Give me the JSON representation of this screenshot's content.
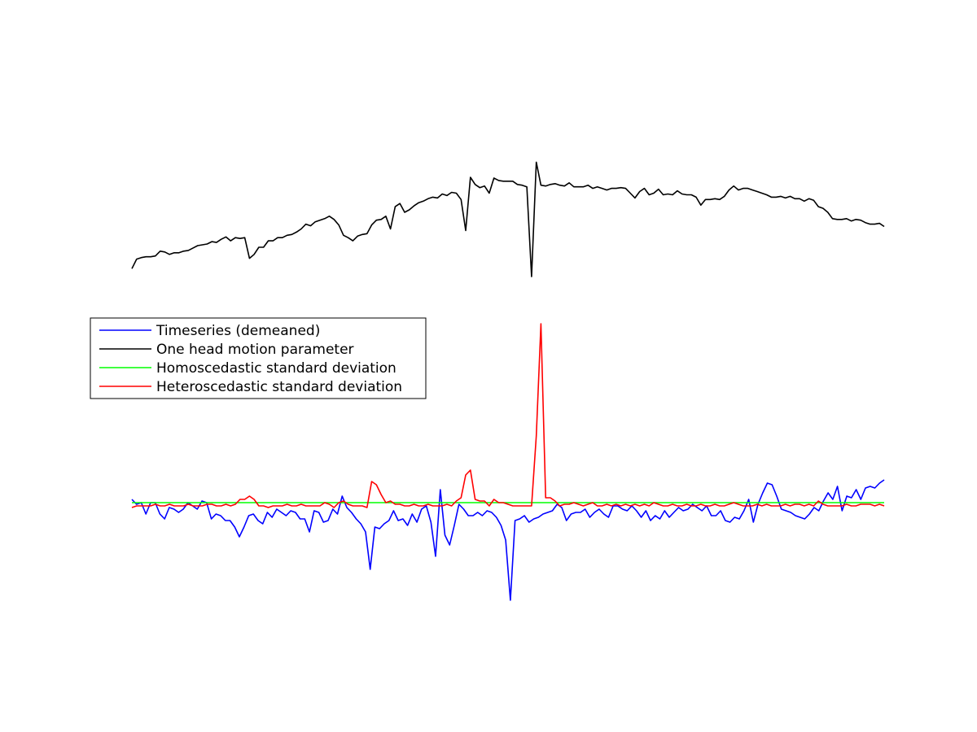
{
  "chart_data": [
    {
      "type": "line",
      "title": "",
      "xlabel": "",
      "ylabel": "",
      "axes_visible": false,
      "grid": false,
      "xlim": [
        1,
        160
      ],
      "ylim": [
        -1.1,
        1.1
      ],
      "series": [
        {
          "name": "One head motion parameter",
          "color": "#000000",
          "values": [
            -0.95,
            -0.83,
            -0.81,
            -0.8,
            -0.8,
            -0.79,
            -0.73,
            -0.74,
            -0.77,
            -0.75,
            -0.75,
            -0.73,
            -0.72,
            -0.69,
            -0.66,
            -0.65,
            -0.64,
            -0.61,
            -0.62,
            -0.58,
            -0.55,
            -0.6,
            -0.56,
            -0.57,
            -0.56,
            -0.82,
            -0.77,
            -0.68,
            -0.68,
            -0.6,
            -0.6,
            -0.56,
            -0.56,
            -0.53,
            -0.52,
            -0.49,
            -0.45,
            -0.39,
            -0.41,
            -0.36,
            -0.34,
            -0.32,
            -0.29,
            -0.33,
            -0.4,
            -0.53,
            -0.56,
            -0.6,
            -0.54,
            -0.52,
            -0.51,
            -0.4,
            -0.34,
            -0.33,
            -0.29,
            -0.45,
            -0.17,
            -0.13,
            -0.24,
            -0.21,
            -0.16,
            -0.12,
            -0.1,
            -0.07,
            -0.05,
            -0.06,
            -0.01,
            -0.03,
            0.01,
            0.0,
            -0.08,
            -0.47,
            0.2,
            0.11,
            0.07,
            0.09,
            0.0,
            0.19,
            0.16,
            0.15,
            0.15,
            0.15,
            0.11,
            0.1,
            0.08,
            -1.05,
            0.39,
            0.1,
            0.09,
            0.11,
            0.12,
            0.1,
            0.09,
            0.13,
            0.08,
            0.08,
            0.08,
            0.1,
            0.06,
            0.08,
            0.06,
            0.04,
            0.06,
            0.06,
            0.07,
            0.06,
            0.0,
            -0.06,
            0.02,
            0.06,
            -0.02,
            0.0,
            0.05,
            -0.02,
            -0.01,
            -0.02,
            0.03,
            -0.01,
            -0.02,
            -0.02,
            -0.05,
            -0.15,
            -0.08,
            -0.08,
            -0.07,
            -0.08,
            -0.04,
            0.04,
            0.09,
            0.04,
            0.06,
            0.06,
            0.04,
            0.02,
            0.0,
            -0.02,
            -0.05,
            -0.05,
            -0.04,
            -0.06,
            -0.04,
            -0.07,
            -0.07,
            -0.1,
            -0.07,
            -0.09,
            -0.17,
            -0.19,
            -0.24,
            -0.32,
            -0.33,
            -0.33,
            -0.32,
            -0.35,
            -0.33,
            -0.34,
            -0.37,
            -0.39,
            -0.39,
            -0.38,
            -0.42
          ]
        }
      ]
    },
    {
      "type": "line",
      "title": "",
      "xlabel": "",
      "ylabel": "",
      "axes_visible": false,
      "grid": false,
      "xlim": [
        1,
        160
      ],
      "ylim": [
        -0.95,
        1.2
      ],
      "legend": {
        "placement": "top-left",
        "border": true
      },
      "series": [
        {
          "name": "Timeseries (demeaned)",
          "color": "#0000ff",
          "values": [
            0.02,
            -0.01,
            0.0,
            -0.07,
            0.0,
            0.0,
            -0.07,
            -0.1,
            -0.03,
            -0.04,
            -0.06,
            -0.04,
            0.0,
            -0.02,
            -0.04,
            0.01,
            0.0,
            -0.1,
            -0.07,
            -0.08,
            -0.11,
            -0.11,
            -0.15,
            -0.21,
            -0.15,
            -0.08,
            -0.07,
            -0.11,
            -0.13,
            -0.06,
            -0.09,
            -0.04,
            -0.06,
            -0.08,
            -0.05,
            -0.06,
            -0.1,
            -0.1,
            -0.18,
            -0.05,
            -0.06,
            -0.12,
            -0.11,
            -0.04,
            -0.07,
            0.04,
            -0.03,
            -0.06,
            -0.1,
            -0.13,
            -0.18,
            -0.41,
            -0.15,
            -0.16,
            -0.13,
            -0.11,
            -0.05,
            -0.11,
            -0.1,
            -0.14,
            -0.07,
            -0.12,
            -0.04,
            -0.02,
            -0.12,
            -0.33,
            0.08,
            -0.2,
            -0.26,
            -0.14,
            -0.01,
            -0.04,
            -0.08,
            -0.08,
            -0.06,
            -0.08,
            -0.05,
            -0.06,
            -0.09,
            -0.14,
            -0.23,
            -0.6,
            -0.11,
            -0.1,
            -0.08,
            -0.12,
            -0.1,
            -0.09,
            -0.07,
            -0.06,
            -0.05,
            -0.01,
            -0.03,
            -0.11,
            -0.07,
            -0.06,
            -0.06,
            -0.04,
            -0.09,
            -0.06,
            -0.04,
            -0.07,
            -0.09,
            -0.02,
            -0.02,
            -0.04,
            -0.05,
            -0.02,
            -0.05,
            -0.09,
            -0.05,
            -0.11,
            -0.08,
            -0.1,
            -0.05,
            -0.09,
            -0.06,
            -0.03,
            -0.05,
            -0.04,
            -0.01,
            -0.03,
            -0.05,
            -0.02,
            -0.08,
            -0.08,
            -0.05,
            -0.11,
            -0.12,
            -0.09,
            -0.1,
            -0.05,
            0.02,
            -0.12,
            -0.01,
            0.06,
            0.12,
            0.11,
            0.04,
            -0.04,
            -0.05,
            -0.06,
            -0.08,
            -0.09,
            -0.1,
            -0.07,
            -0.03,
            -0.05,
            0.01,
            0.06,
            0.02,
            0.1,
            -0.05,
            0.04,
            0.03,
            0.08,
            0.02,
            0.09,
            0.1,
            0.09,
            0.12,
            0.14
          ]
        },
        {
          "name": "Homoscedastic standard deviation",
          "color": "#00ff00",
          "values": [
            0.0,
            0.0,
            0.0,
            0.0,
            0.0,
            0.0,
            0.0,
            0.0,
            0.0,
            0.0,
            0.0,
            0.0,
            0.0,
            0.0,
            0.0,
            0.0,
            0.0,
            0.0,
            0.0,
            0.0,
            0.0,
            0.0,
            0.0,
            0.0,
            0.0,
            0.0,
            0.0,
            0.0,
            0.0,
            0.0,
            0.0,
            0.0,
            0.0,
            0.0,
            0.0,
            0.0,
            0.0,
            0.0,
            0.0,
            0.0,
            0.0,
            0.0,
            0.0,
            0.0,
            0.0,
            0.0,
            0.0,
            0.0,
            0.0,
            0.0,
            0.0,
            0.0,
            0.0,
            0.0,
            0.0,
            0.0,
            0.0,
            0.0,
            0.0,
            0.0,
            0.0,
            0.0,
            0.0,
            0.0,
            0.0,
            0.0,
            0.0,
            0.0,
            0.0,
            0.0,
            0.0,
            0.0,
            0.0,
            0.0,
            0.0,
            0.0,
            0.0,
            0.0,
            0.0,
            0.0,
            0.0,
            0.0,
            0.0,
            0.0,
            0.0,
            0.0,
            0.0,
            0.0,
            0.0,
            0.0,
            0.0,
            0.0,
            0.0,
            0.0,
            0.0,
            0.0,
            0.0,
            0.0,
            0.0,
            0.0,
            0.0,
            0.0,
            0.0,
            0.0,
            0.0,
            0.0,
            0.0,
            0.0,
            0.0,
            0.0,
            0.0,
            0.0,
            0.0,
            0.0,
            0.0,
            0.0,
            0.0,
            0.0,
            0.0,
            0.0,
            0.0,
            0.0,
            0.0,
            0.0,
            0.0,
            0.0,
            0.0,
            0.0,
            0.0,
            0.0,
            0.0,
            0.0,
            0.0,
            0.0,
            0.0,
            0.0,
            0.0,
            0.0,
            0.0,
            0.0,
            0.0,
            0.0,
            0.0,
            0.0,
            0.0,
            0.0,
            0.0,
            0.0,
            0.0,
            0.0,
            0.0,
            0.0,
            0.0,
            0.0,
            0.0,
            0.0,
            0.0,
            0.0,
            0.0,
            0.0,
            0.0
          ]
        },
        {
          "name": "Heteroscedastic standard deviation",
          "color": "#ff0000",
          "values": [
            -0.03,
            -0.02,
            -0.02,
            -0.02,
            -0.02,
            -0.01,
            -0.02,
            -0.02,
            -0.01,
            -0.02,
            -0.02,
            -0.02,
            -0.01,
            -0.02,
            -0.02,
            -0.02,
            -0.01,
            -0.01,
            -0.02,
            -0.02,
            -0.01,
            -0.02,
            -0.01,
            0.02,
            0.02,
            0.04,
            0.02,
            -0.02,
            -0.02,
            -0.03,
            -0.02,
            -0.02,
            -0.02,
            -0.01,
            -0.02,
            -0.02,
            -0.01,
            -0.02,
            -0.02,
            -0.02,
            -0.02,
            0.0,
            -0.01,
            -0.03,
            0.0,
            0.01,
            -0.01,
            -0.02,
            -0.02,
            -0.02,
            -0.03,
            0.13,
            0.11,
            0.05,
            0.0,
            0.01,
            -0.01,
            -0.01,
            -0.02,
            -0.02,
            -0.01,
            -0.02,
            -0.02,
            -0.01,
            -0.02,
            -0.02,
            -0.02,
            -0.01,
            -0.02,
            0.01,
            0.03,
            0.17,
            0.2,
            0.02,
            0.01,
            0.01,
            -0.02,
            0.02,
            0.0,
            0.0,
            -0.01,
            -0.02,
            -0.02,
            -0.02,
            -0.02,
            -0.02,
            0.41,
            1.1,
            0.03,
            0.03,
            0.01,
            -0.02,
            -0.01,
            -0.01,
            0.0,
            -0.01,
            -0.02,
            -0.01,
            0.0,
            -0.02,
            -0.02,
            -0.01,
            -0.02,
            -0.01,
            -0.02,
            -0.01,
            -0.02,
            -0.01,
            -0.02,
            -0.01,
            -0.02,
            0.0,
            -0.01,
            -0.02,
            -0.02,
            -0.01,
            -0.02,
            -0.02,
            -0.01,
            -0.02,
            -0.02,
            -0.01,
            -0.02,
            -0.02,
            -0.01,
            -0.02,
            -0.02,
            -0.01,
            0.0,
            -0.01,
            -0.02,
            -0.02,
            -0.02,
            -0.01,
            -0.02,
            -0.01,
            -0.02,
            -0.02,
            -0.02,
            -0.01,
            -0.02,
            -0.01,
            -0.01,
            -0.02,
            -0.01,
            -0.02,
            0.01,
            -0.01,
            -0.02,
            -0.02,
            -0.02,
            -0.02,
            -0.01,
            -0.02,
            -0.02,
            -0.01,
            -0.01,
            -0.01,
            -0.02,
            -0.01,
            -0.02
          ]
        }
      ]
    }
  ],
  "legend_entries": [
    {
      "label": "Timeseries (demeaned)",
      "color": "#0000ff"
    },
    {
      "label": "One head motion parameter",
      "color": "#000000"
    },
    {
      "label": "Homoscedastic standard deviation",
      "color": "#00ff00"
    },
    {
      "label": "Heteroscedastic standard deviation",
      "color": "#ff0000"
    }
  ]
}
